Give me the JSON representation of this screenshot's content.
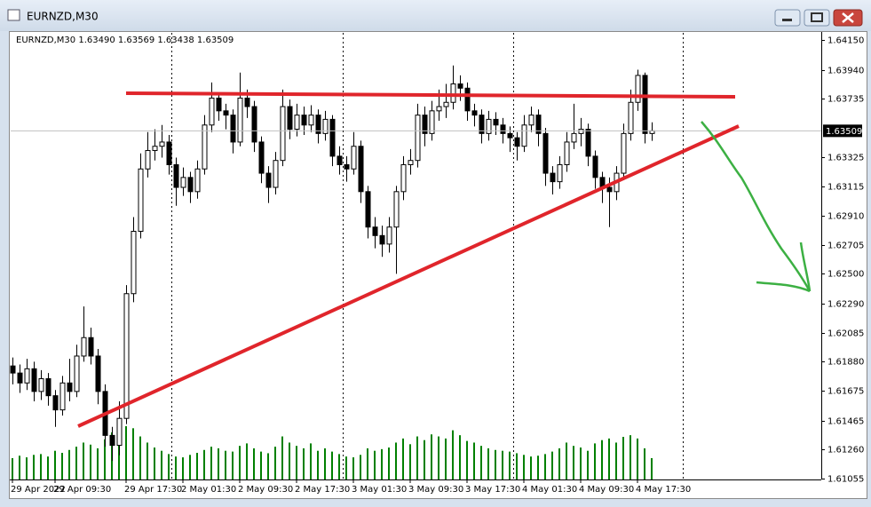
{
  "window_title": "EURNZD,M30",
  "chart_data": {
    "type": "candlestick",
    "title": "EURNZD,M30 1.63490 1.63569 1.63438 1.63509",
    "categories": [
      "29 Apr 2022",
      null,
      null,
      null,
      null,
      null,
      "29 Apr 09:30",
      null,
      null,
      null,
      null,
      null,
      null,
      null,
      null,
      null,
      "29 Apr 17:30",
      null,
      null,
      null,
      null,
      null,
      null,
      null,
      "2 May 01:30",
      null,
      null,
      null,
      null,
      null,
      null,
      null,
      "2 May 09:30",
      null,
      null,
      null,
      null,
      null,
      null,
      null,
      "2 May 17:30",
      null,
      null,
      null,
      null,
      null,
      null,
      null,
      "3 May 01:30",
      null,
      null,
      null,
      null,
      null,
      null,
      null,
      "3 May 09:30",
      null,
      null,
      null,
      null,
      null,
      null,
      null,
      "3 May 17:30",
      null,
      null,
      null,
      null,
      null,
      null,
      null,
      "4 May 01:30",
      null,
      null,
      null,
      null,
      null,
      null,
      null,
      "4 May 09:30",
      null,
      null,
      null,
      null,
      null,
      null,
      null,
      "4 May 17:30",
      null,
      null
    ],
    "open": [
      1.6185,
      1.618,
      1.6173,
      1.6183,
      1.6167,
      1.6176,
      1.6164,
      1.6154,
      1.6173,
      1.6167,
      1.6192,
      1.6205,
      1.6192,
      1.6167,
      1.6136,
      1.6129,
      1.6148,
      1.6236,
      1.628,
      1.6324,
      1.6337,
      1.634,
      1.6343,
      1.6327,
      1.6311,
      1.6318,
      1.6308,
      1.6324,
      1.6355,
      1.6374,
      1.6365,
      1.6362,
      1.6343,
      1.6374,
      1.6368,
      1.6343,
      1.6321,
      1.6311,
      1.633,
      1.6368,
      1.6352,
      1.6362,
      1.6355,
      1.6362,
      1.6349,
      1.6359,
      1.6333,
      1.6327,
      1.6324,
      1.634,
      1.6308,
      1.6283,
      1.6277,
      1.6271,
      1.6283,
      1.6308,
      1.6327,
      1.633,
      1.6362,
      1.6349,
      1.6365,
      1.6368,
      1.6371,
      1.6384,
      1.6381,
      1.6365,
      1.6362,
      1.6349,
      1.6359,
      1.6355,
      1.6349,
      1.6346,
      1.634,
      1.6355,
      1.6362,
      1.6349,
      1.6321,
      1.6315,
      1.6327,
      1.6343,
      1.6349,
      1.6352,
      1.6333,
      1.6318,
      1.6311,
      1.6308,
      1.6321,
      1.6349,
      1.6371,
      1.639,
      1.6349
    ],
    "high": [
      1.6191,
      1.6186,
      1.619,
      1.6188,
      1.6182,
      1.618,
      1.6168,
      1.6178,
      1.619,
      1.62,
      1.6227,
      1.6212,
      1.6197,
      1.6172,
      1.6142,
      1.616,
      1.6242,
      1.629,
      1.6335,
      1.635,
      1.6352,
      1.6355,
      1.6348,
      1.6332,
      1.6325,
      1.6322,
      1.633,
      1.6362,
      1.6385,
      1.6378,
      1.637,
      1.6366,
      1.6392,
      1.638,
      1.6372,
      1.6347,
      1.6326,
      1.6336,
      1.638,
      1.6373,
      1.637,
      1.6368,
      1.6369,
      1.6366,
      1.6365,
      1.6362,
      1.634,
      1.6333,
      1.635,
      1.6344,
      1.6312,
      1.629,
      1.6284,
      1.629,
      1.6312,
      1.6333,
      1.6338,
      1.637,
      1.6368,
      1.6372,
      1.638,
      1.6384,
      1.6397,
      1.639,
      1.6385,
      1.637,
      1.6366,
      1.6365,
      1.6364,
      1.636,
      1.6354,
      1.635,
      1.6362,
      1.6368,
      1.6366,
      1.6353,
      1.6326,
      1.6333,
      1.635,
      1.637,
      1.636,
      1.6356,
      1.6337,
      1.6322,
      1.6318,
      1.6326,
      1.6356,
      1.638,
      1.6394,
      1.6392,
      1.63569
    ],
    "low": [
      1.6172,
      1.6166,
      1.6168,
      1.616,
      1.6161,
      1.6157,
      1.6142,
      1.615,
      1.616,
      1.6163,
      1.6188,
      1.6186,
      1.6158,
      1.6128,
      1.6118,
      1.6122,
      1.6144,
      1.623,
      1.6275,
      1.6318,
      1.633,
      1.6332,
      1.632,
      1.6298,
      1.6305,
      1.63,
      1.6303,
      1.632,
      1.635,
      1.6358,
      1.6352,
      1.6335,
      1.634,
      1.636,
      1.6336,
      1.6314,
      1.63,
      1.6306,
      1.6326,
      1.6345,
      1.6347,
      1.6348,
      1.635,
      1.6342,
      1.6344,
      1.6326,
      1.632,
      1.6315,
      1.632,
      1.63,
      1.6275,
      1.6268,
      1.6262,
      1.6265,
      1.625,
      1.6302,
      1.632,
      1.6325,
      1.634,
      1.6344,
      1.6358,
      1.636,
      1.6366,
      1.6372,
      1.6358,
      1.6354,
      1.6342,
      1.6344,
      1.6348,
      1.6342,
      1.6336,
      1.633,
      1.6336,
      1.635,
      1.634,
      1.6312,
      1.6306,
      1.631,
      1.6322,
      1.6338,
      1.634,
      1.6326,
      1.631,
      1.63,
      1.6283,
      1.6302,
      1.6316,
      1.6344,
      1.6365,
      1.6342,
      1.63438
    ],
    "close": [
      1.618,
      1.6173,
      1.6183,
      1.6167,
      1.6176,
      1.6164,
      1.6154,
      1.6173,
      1.6167,
      1.6192,
      1.6205,
      1.6192,
      1.6167,
      1.6136,
      1.6129,
      1.6148,
      1.6236,
      1.628,
      1.6324,
      1.6337,
      1.634,
      1.6343,
      1.6327,
      1.6311,
      1.6318,
      1.6308,
      1.6324,
      1.6355,
      1.6374,
      1.6365,
      1.6362,
      1.6343,
      1.6374,
      1.6368,
      1.6343,
      1.6321,
      1.6311,
      1.633,
      1.6368,
      1.6352,
      1.6362,
      1.6355,
      1.6362,
      1.6349,
      1.6359,
      1.6333,
      1.6327,
      1.6324,
      1.634,
      1.6308,
      1.6283,
      1.6277,
      1.6271,
      1.6283,
      1.6308,
      1.6327,
      1.633,
      1.6362,
      1.6349,
      1.6365,
      1.6368,
      1.6371,
      1.6384,
      1.6381,
      1.6365,
      1.6362,
      1.6349,
      1.6359,
      1.6355,
      1.6349,
      1.6346,
      1.634,
      1.6355,
      1.6362,
      1.6349,
      1.6321,
      1.6315,
      1.6327,
      1.6343,
      1.6349,
      1.6352,
      1.6333,
      1.6318,
      1.6311,
      1.6308,
      1.6321,
      1.6349,
      1.6371,
      1.639,
      1.6349,
      1.63509
    ],
    "volume": [
      520,
      580,
      540,
      600,
      620,
      560,
      700,
      650,
      720,
      800,
      900,
      850,
      760,
      980,
      1150,
      1100,
      1300,
      1250,
      1050,
      900,
      780,
      700,
      620,
      560,
      540,
      600,
      650,
      720,
      800,
      760,
      700,
      680,
      820,
      880,
      760,
      680,
      640,
      800,
      1050,
      900,
      820,
      760,
      880,
      700,
      760,
      680,
      620,
      560,
      540,
      600,
      760,
      700,
      740,
      780,
      900,
      1000,
      860,
      1050,
      960,
      1100,
      1050,
      1000,
      1200,
      1080,
      940,
      900,
      820,
      760,
      720,
      700,
      680,
      640,
      600,
      560,
      580,
      620,
      680,
      760,
      900,
      820,
      780,
      700,
      880,
      960,
      1000,
      900,
      1040,
      1080,
      1000,
      760,
      520
    ],
    "up_color": "#ffffff",
    "down_color": "#000000",
    "volume_color": "#008000",
    "ylim": [
      1.61049,
      1.64194
    ],
    "yticks": [
      {
        "value": 1.6415,
        "label": "1.64150"
      },
      {
        "value": 1.6394,
        "label": "1.63940"
      },
      1.63735,
      1.63325,
      1.63115,
      {
        "value": 1.6291,
        "label": "1.62910"
      },
      1.62705,
      {
        "value": 1.625,
        "label": "1.62500"
      },
      {
        "value": 1.6229,
        "label": "1.62290"
      },
      1.62085,
      {
        "value": 1.6188,
        "label": "1.61880"
      },
      1.61675,
      1.61465,
      {
        "value": 1.6126,
        "label": "1.61260"
      },
      1.61055
    ],
    "last_price": {
      "value": 1.63509,
      "label": "1.63509"
    }
  }
}
